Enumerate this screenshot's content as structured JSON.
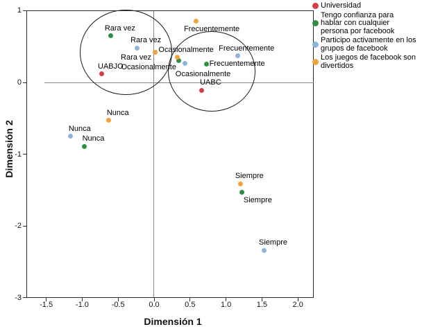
{
  "chart_data": {
    "type": "scatter",
    "title": "",
    "xlabel": "Dimensión 1",
    "ylabel": "Dimensión 2",
    "xlim": [
      -1.77,
      2.22
    ],
    "ylim": [
      -3,
      1
    ],
    "grid": false,
    "legend_position": "top-right-outside",
    "x_tick_labels": [
      "-1.5",
      "-1.0",
      "-0.5",
      "0.0",
      "0.5",
      "1.0",
      "1.5",
      "2.0"
    ],
    "x_ticks": [
      -1.5,
      -1.0,
      -0.5,
      0.0,
      0.5,
      1.0,
      1.5,
      2.0
    ],
    "y_tick_labels": [
      "1",
      "0",
      "-1",
      "-2",
      "-3"
    ],
    "y_ticks": [
      1,
      0,
      -1,
      -2,
      -3
    ],
    "series": [
      {
        "name": "Universidad",
        "color": "#d63e46",
        "points": [
          {
            "label": "UABJO",
            "x": -0.73,
            "y": 0.12,
            "label_pos": "above"
          },
          {
            "label": "UABC",
            "x": 0.66,
            "y": -0.11,
            "label_pos": "above"
          }
        ]
      },
      {
        "name": "Tengo confianza para hablar con cualquier persona por facebook",
        "color": "#2e8f43",
        "points": [
          {
            "label": "Nunca",
            "x": -0.97,
            "y": -0.89,
            "label_pos": "above"
          },
          {
            "label": "Rara vez",
            "x": -0.6,
            "y": 0.65,
            "label_pos": "above"
          },
          {
            "label": "Ocasionalmente",
            "x": 0.34,
            "y": 0.3,
            "label_pos": "left"
          },
          {
            "label": "Frecuentemente",
            "x": 0.73,
            "y": 0.26,
            "label_pos": "right"
          },
          {
            "label": "Siempre",
            "x": 1.22,
            "y": -1.53,
            "label_pos": "below-right"
          }
        ]
      },
      {
        "name": "Participo activamente en los grupos de facebook",
        "color": "#8fb2d9",
        "points": [
          {
            "label": "Nunca",
            "x": -1.16,
            "y": -0.75,
            "label_pos": "above"
          },
          {
            "label": "Rara vez",
            "x": -0.24,
            "y": 0.48,
            "label_pos": "above"
          },
          {
            "label": "Ocasionalmente",
            "x": 0.43,
            "y": 0.27,
            "label_pos": "below"
          },
          {
            "label": "Frecuentemente",
            "x": 1.16,
            "y": 0.37,
            "label_pos": "above"
          },
          {
            "label": "Siempre",
            "x": 1.53,
            "y": -2.34,
            "label_pos": "above"
          }
        ]
      },
      {
        "name": "Los juegos de facebook son divertidos",
        "color": "#f0a23c",
        "points": [
          {
            "label": "Nunca",
            "x": -0.63,
            "y": -0.53,
            "label_pos": "above"
          },
          {
            "label": "Rara vez",
            "x": 0.01,
            "y": 0.42,
            "label_pos": "below-left"
          },
          {
            "label": "Ocasionalmente",
            "x": 0.32,
            "y": 0.35,
            "label_pos": "above"
          },
          {
            "label": "Frecuentemente",
            "x": 0.58,
            "y": 0.85,
            "label_pos": "below-right"
          },
          {
            "label": "Siempre",
            "x": 1.2,
            "y": -1.41,
            "label_pos": "above"
          }
        ]
      }
    ],
    "annotations": {
      "circles": [
        {
          "cx": -0.39,
          "cy": 0.42,
          "rx": 0.64,
          "ry": 0.59
        },
        {
          "cx": 0.8,
          "cy": 0.15,
          "rx": 0.61,
          "ry": 0.56
        }
      ]
    }
  },
  "axes": {
    "x_title": "Dimensión 1",
    "y_title": "Dimensión 2"
  },
  "legend": {
    "items": [
      {
        "label": "Universidad",
        "lines": [
          "Universidad"
        ],
        "color": "#d63e46"
      },
      {
        "label": "Tengo confianza para hablar con cualquier persona por facebook",
        "lines": [
          "Tengo confianza para",
          "hablar con cualquier",
          "persona por facebook"
        ],
        "color": "#2e8f43"
      },
      {
        "label": "Participo activamente en los grupos de facebook",
        "lines": [
          "Participo activamente en los",
          "grupos de facebook"
        ],
        "color": "#8fb2d9"
      },
      {
        "label": "Los juegos de facebook son divertidos",
        "lines": [
          "Los juegos de facebook son",
          "divertidos"
        ],
        "color": "#f0a23c"
      }
    ]
  },
  "colors": {
    "frame": "#2b2b2b",
    "zero_lines": "#858585",
    "background": "#ffffff",
    "text": "#000000"
  }
}
